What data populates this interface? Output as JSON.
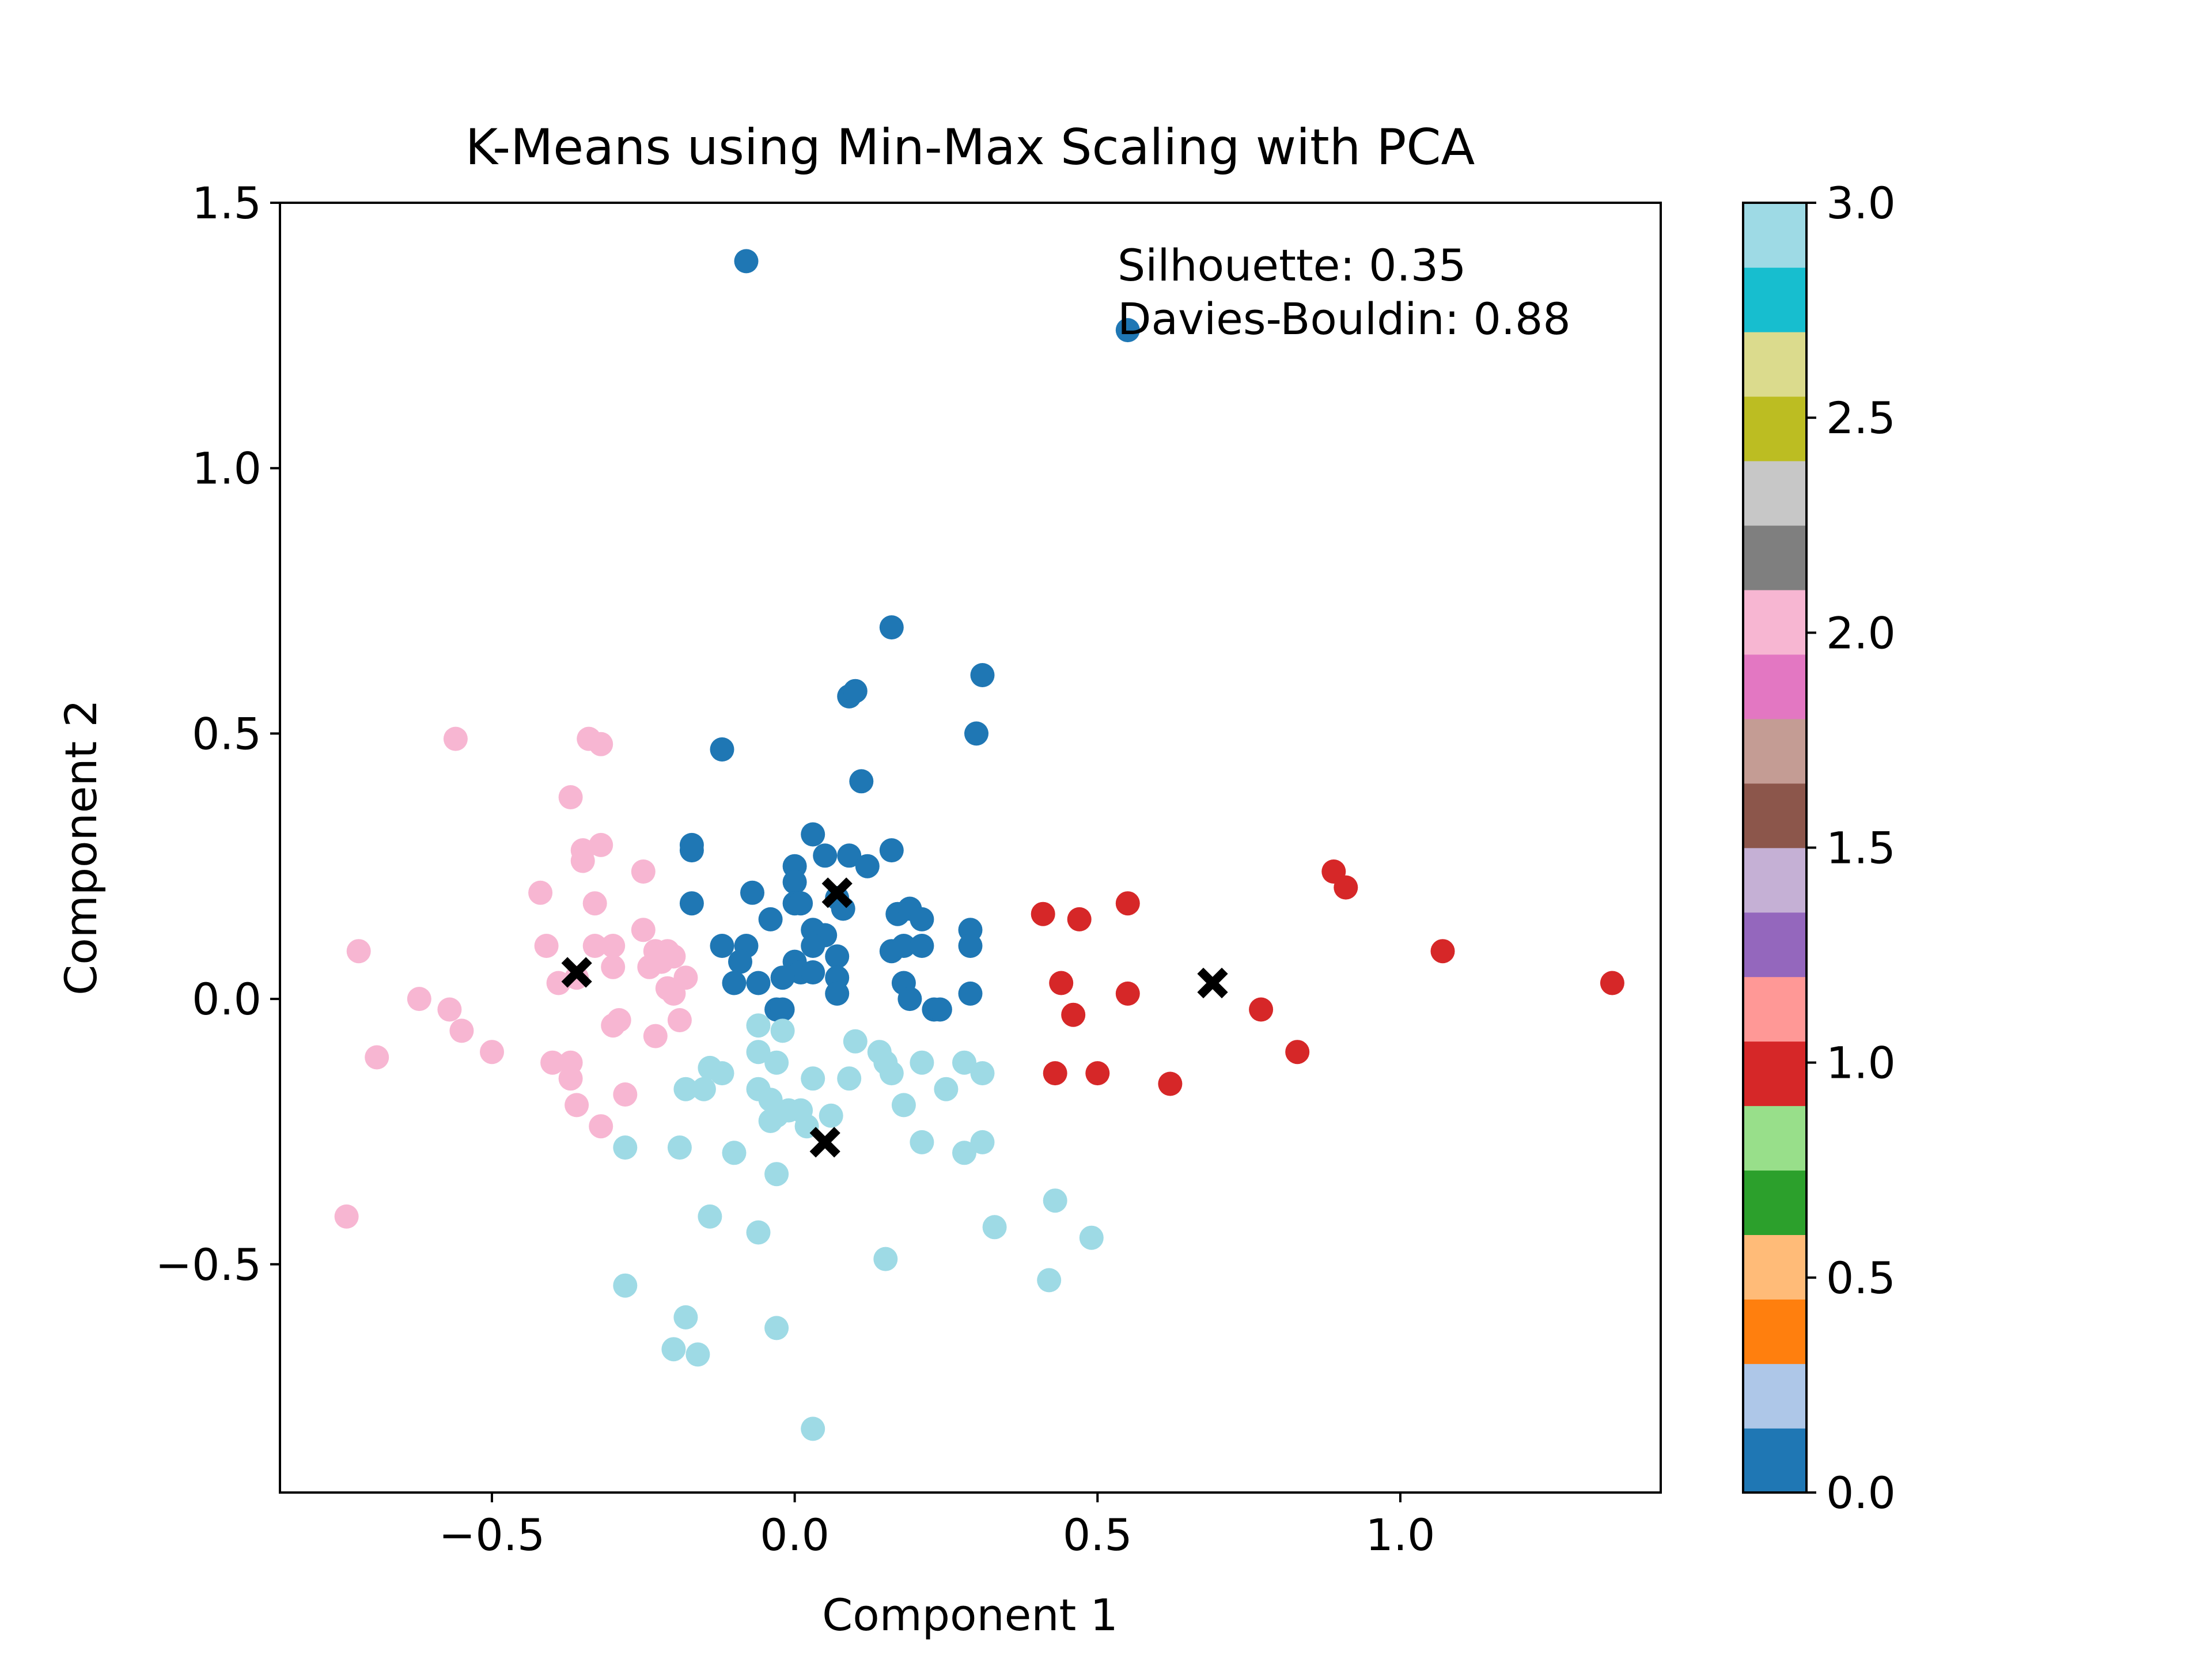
{
  "chart_data": {
    "type": "scatter",
    "title": "K-Means using Min-Max Scaling with PCA",
    "xlabel": "Component 1",
    "ylabel": "Component 2",
    "xlim": [
      -0.85,
      1.43
    ],
    "ylim": [
      -0.93,
      1.5
    ],
    "xticks": [
      -0.5,
      0.0,
      0.5,
      1.0
    ],
    "xtick_labels": [
      "−0.5",
      "0.0",
      "0.5",
      "1.0"
    ],
    "yticks": [
      -0.5,
      0.0,
      0.5,
      1.0,
      1.5
    ],
    "ytick_labels": [
      "−0.5",
      "0.0",
      "0.5",
      "1.0",
      "1.5"
    ],
    "grid": false,
    "annotation": {
      "silhouette": "Silhouette: 0.35",
      "davies_bouldin": "Davies-Bouldin: 0.88"
    },
    "colorbar": {
      "cmap": "tab20",
      "range": [
        0.0,
        3.0
      ],
      "ticks": [
        0.0,
        0.5,
        1.0,
        1.5,
        2.0,
        2.5,
        3.0
      ],
      "tick_labels": [
        "0.0",
        "0.5",
        "1.0",
        "1.5",
        "2.0",
        "2.5",
        "3.0"
      ],
      "colors": [
        "#1f77b4",
        "#aec7e8",
        "#ff7f0e",
        "#ffbb78",
        "#2ca02c",
        "#98df8a",
        "#d62728",
        "#ff9896",
        "#9467bd",
        "#c5b0d5",
        "#8c564b",
        "#c49c94",
        "#e377c2",
        "#f7b6d2",
        "#7f7f7f",
        "#c7c7c7",
        "#bcbd22",
        "#dbdb8d",
        "#17becf",
        "#9edae5"
      ]
    },
    "cluster_colors": [
      "#1f77b4",
      "#d62728",
      "#f7b6d2",
      "#9edae5"
    ],
    "centroids": [
      {
        "cluster": 0,
        "x": 0.07,
        "y": 0.2
      },
      {
        "cluster": 1,
        "x": 0.69,
        "y": 0.03
      },
      {
        "cluster": 2,
        "x": -0.36,
        "y": 0.05
      },
      {
        "cluster": 3,
        "x": 0.05,
        "y": -0.27
      }
    ],
    "series": [
      {
        "cluster": 0,
        "points": [
          [
            -0.08,
            1.39
          ],
          [
            0.55,
            1.26
          ],
          [
            0.16,
            0.7
          ],
          [
            0.31,
            0.61
          ],
          [
            0.09,
            0.57
          ],
          [
            0.1,
            0.58
          ],
          [
            0.3,
            0.5
          ],
          [
            -0.12,
            0.47
          ],
          [
            0.11,
            0.41
          ],
          [
            -0.17,
            0.29
          ],
          [
            -0.17,
            0.28
          ],
          [
            0.03,
            0.31
          ],
          [
            0.05,
            0.27
          ],
          [
            0.09,
            0.27
          ],
          [
            0.16,
            0.28
          ],
          [
            0.12,
            0.25
          ],
          [
            0.0,
            0.25
          ],
          [
            0.0,
            0.22
          ],
          [
            -0.07,
            0.2
          ],
          [
            0.07,
            0.19
          ],
          [
            -0.17,
            0.18
          ],
          [
            0.0,
            0.18
          ],
          [
            0.01,
            0.18
          ],
          [
            0.08,
            0.17
          ],
          [
            -0.04,
            0.15
          ],
          [
            0.17,
            0.16
          ],
          [
            0.19,
            0.17
          ],
          [
            0.21,
            0.15
          ],
          [
            0.03,
            0.13
          ],
          [
            0.05,
            0.12
          ],
          [
            0.29,
            0.13
          ],
          [
            -0.12,
            0.1
          ],
          [
            -0.08,
            0.1
          ],
          [
            0.03,
            0.1
          ],
          [
            0.16,
            0.09
          ],
          [
            0.18,
            0.1
          ],
          [
            0.21,
            0.1
          ],
          [
            0.29,
            0.1
          ],
          [
            -0.09,
            0.07
          ],
          [
            0.0,
            0.07
          ],
          [
            0.07,
            0.08
          ],
          [
            0.01,
            0.05
          ],
          [
            -0.02,
            0.04
          ],
          [
            0.03,
            0.05
          ],
          [
            0.07,
            0.04
          ],
          [
            0.18,
            0.03
          ],
          [
            -0.1,
            0.03
          ],
          [
            -0.06,
            0.03
          ],
          [
            0.07,
            0.01
          ],
          [
            0.19,
            0.0
          ],
          [
            0.29,
            0.01
          ],
          [
            -0.03,
            -0.02
          ],
          [
            -0.02,
            -0.02
          ],
          [
            0.23,
            -0.02
          ],
          [
            0.24,
            -0.02
          ]
        ]
      },
      {
        "cluster": 1,
        "points": [
          [
            0.89,
            0.24
          ],
          [
            0.91,
            0.21
          ],
          [
            0.55,
            0.18
          ],
          [
            0.41,
            0.16
          ],
          [
            0.47,
            0.15
          ],
          [
            1.07,
            0.09
          ],
          [
            1.35,
            0.03
          ],
          [
            0.44,
            0.03
          ],
          [
            0.55,
            0.01
          ],
          [
            0.77,
            -0.02
          ],
          [
            0.46,
            -0.03
          ],
          [
            0.83,
            -0.1
          ],
          [
            0.43,
            -0.14
          ],
          [
            0.5,
            -0.14
          ],
          [
            0.62,
            -0.16
          ]
        ]
      },
      {
        "cluster": 2,
        "points": [
          [
            -0.56,
            0.49
          ],
          [
            -0.34,
            0.49
          ],
          [
            -0.32,
            0.48
          ],
          [
            -0.37,
            0.38
          ],
          [
            -0.32,
            0.29
          ],
          [
            -0.35,
            0.28
          ],
          [
            -0.35,
            0.26
          ],
          [
            -0.25,
            0.24
          ],
          [
            -0.42,
            0.2
          ],
          [
            -0.33,
            0.18
          ],
          [
            -0.25,
            0.13
          ],
          [
            -0.72,
            0.09
          ],
          [
            -0.41,
            0.1
          ],
          [
            -0.33,
            0.1
          ],
          [
            -0.3,
            0.1
          ],
          [
            -0.23,
            0.09
          ],
          [
            -0.21,
            0.09
          ],
          [
            -0.2,
            0.08
          ],
          [
            -0.22,
            0.07
          ],
          [
            -0.3,
            0.06
          ],
          [
            -0.24,
            0.06
          ],
          [
            -0.18,
            0.04
          ],
          [
            -0.39,
            0.03
          ],
          [
            -0.36,
            0.04
          ],
          [
            -0.21,
            0.02
          ],
          [
            -0.2,
            0.01
          ],
          [
            -0.62,
            0.0
          ],
          [
            -0.57,
            -0.02
          ],
          [
            -0.19,
            -0.04
          ],
          [
            -0.29,
            -0.04
          ],
          [
            -0.3,
            -0.05
          ],
          [
            -0.55,
            -0.06
          ],
          [
            -0.23,
            -0.07
          ],
          [
            -0.5,
            -0.1
          ],
          [
            -0.69,
            -0.11
          ],
          [
            -0.4,
            -0.12
          ],
          [
            -0.37,
            -0.12
          ],
          [
            -0.37,
            -0.15
          ],
          [
            -0.28,
            -0.18
          ],
          [
            -0.36,
            -0.2
          ],
          [
            -0.32,
            -0.24
          ],
          [
            -0.74,
            -0.41
          ]
        ]
      },
      {
        "cluster": 3,
        "points": [
          [
            -0.06,
            -0.05
          ],
          [
            -0.02,
            -0.06
          ],
          [
            0.1,
            -0.08
          ],
          [
            -0.06,
            -0.1
          ],
          [
            -0.03,
            -0.12
          ],
          [
            0.14,
            -0.1
          ],
          [
            0.21,
            -0.12
          ],
          [
            0.28,
            -0.12
          ],
          [
            0.15,
            -0.12
          ],
          [
            -0.14,
            -0.13
          ],
          [
            0.31,
            -0.14
          ],
          [
            -0.12,
            -0.14
          ],
          [
            0.16,
            -0.14
          ],
          [
            0.03,
            -0.15
          ],
          [
            0.09,
            -0.15
          ],
          [
            0.25,
            -0.17
          ],
          [
            -0.18,
            -0.17
          ],
          [
            -0.15,
            -0.17
          ],
          [
            -0.06,
            -0.17
          ],
          [
            -0.04,
            -0.19
          ],
          [
            0.01,
            -0.21
          ],
          [
            0.18,
            -0.2
          ],
          [
            -0.01,
            -0.21
          ],
          [
            0.06,
            -0.22
          ],
          [
            -0.04,
            -0.23
          ],
          [
            -0.03,
            -0.22
          ],
          [
            0.02,
            -0.24
          ],
          [
            -0.28,
            -0.28
          ],
          [
            -0.19,
            -0.28
          ],
          [
            0.21,
            -0.27
          ],
          [
            0.31,
            -0.27
          ],
          [
            0.28,
            -0.29
          ],
          [
            -0.1,
            -0.29
          ],
          [
            -0.03,
            -0.33
          ],
          [
            0.43,
            -0.38
          ],
          [
            -0.14,
            -0.41
          ],
          [
            0.33,
            -0.43
          ],
          [
            -0.06,
            -0.44
          ],
          [
            0.49,
            -0.45
          ],
          [
            0.15,
            -0.49
          ],
          [
            0.42,
            -0.53
          ],
          [
            -0.28,
            -0.54
          ],
          [
            -0.18,
            -0.6
          ],
          [
            -0.03,
            -0.62
          ],
          [
            -0.2,
            -0.66
          ],
          [
            -0.16,
            -0.67
          ],
          [
            0.03,
            -0.81
          ]
        ]
      }
    ]
  }
}
